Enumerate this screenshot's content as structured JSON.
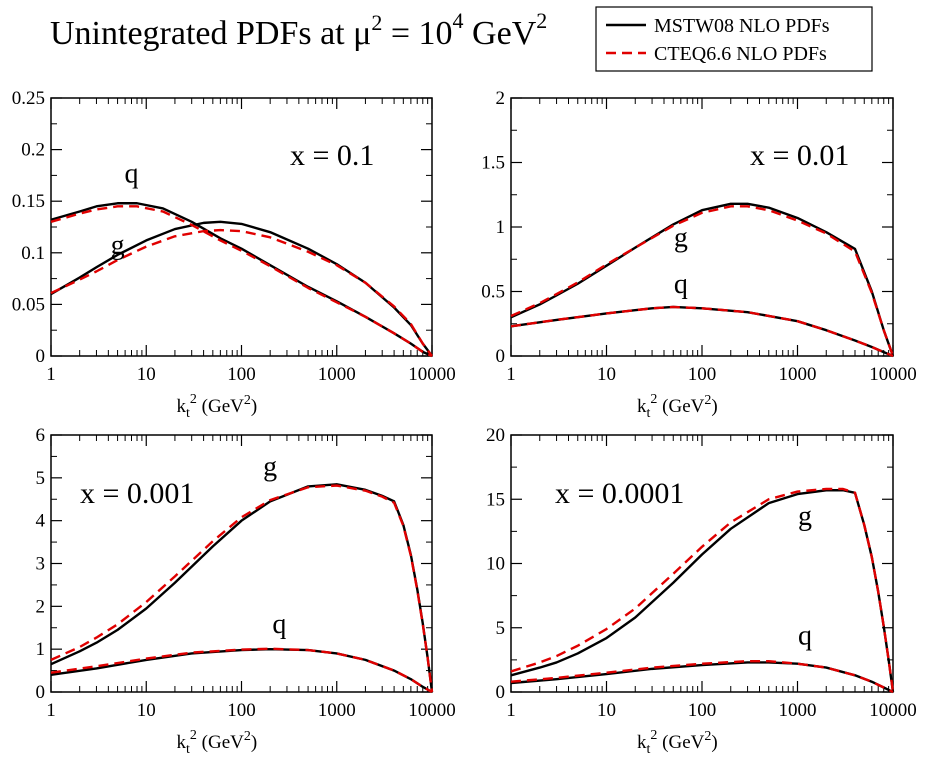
{
  "figure": {
    "title": "Unintegrated PDFs at μ² = 10⁴ GeV²",
    "title_parts": {
      "main": "Unintegrated PDFs at μ",
      "exp1": "2",
      "mid": " = 10",
      "exp2": "4",
      "unit": " GeV",
      "exp3": "2"
    },
    "legend": [
      {
        "label": "MSTW08 NLO PDFs",
        "color": "#000000",
        "dash": "solid"
      },
      {
        "label": "CTEQ6.6 NLO PDFs",
        "color": "#e00000",
        "dash": "dashed"
      }
    ],
    "colors": {
      "mstw": "#000000",
      "cteq": "#e00000"
    }
  },
  "chart_data": [
    {
      "type": "line",
      "title": "x = 0.1",
      "xscale": "log",
      "xlim": [
        1,
        10000
      ],
      "ylim": [
        0,
        0.25
      ],
      "xticks": [
        "1",
        "10",
        "100",
        "1000",
        "10000"
      ],
      "yticks": [
        "0",
        "0.05",
        "0.1",
        "0.15",
        "0.2",
        "0.25"
      ],
      "xlabel": "kt² (GeV²)",
      "curve_labels": [
        {
          "text": "q",
          "x": 7,
          "y": 0.168
        },
        {
          "text": "g",
          "x": 5,
          "y": 0.099
        }
      ],
      "series": [
        {
          "name": "MSTW08 NLO PDFs",
          "parton": "q",
          "x": [
            1,
            2,
            3,
            5,
            8,
            15,
            30,
            60,
            100,
            200,
            500,
            1000,
            2000,
            4000,
            6000,
            8000,
            10000
          ],
          "values": [
            0.132,
            0.14,
            0.145,
            0.148,
            0.148,
            0.143,
            0.13,
            0.114,
            0.104,
            0.088,
            0.067,
            0.053,
            0.038,
            0.022,
            0.012,
            0.004,
            0
          ]
        },
        {
          "name": "CTEQ6.6 NLO PDFs",
          "parton": "q",
          "x": [
            1,
            2,
            3,
            5,
            8,
            15,
            30,
            60,
            100,
            200,
            500,
            1000,
            2000,
            4000,
            6000,
            8000,
            10000
          ],
          "values": [
            0.13,
            0.138,
            0.142,
            0.145,
            0.145,
            0.14,
            0.127,
            0.112,
            0.102,
            0.087,
            0.066,
            0.052,
            0.038,
            0.022,
            0.012,
            0.004,
            0
          ]
        },
        {
          "name": "MSTW08 NLO PDFs",
          "parton": "g",
          "x": [
            1,
            2,
            3,
            5,
            10,
            20,
            40,
            60,
            100,
            200,
            500,
            1000,
            2000,
            4000,
            6000,
            8000,
            10000
          ],
          "values": [
            0.06,
            0.076,
            0.086,
            0.098,
            0.112,
            0.123,
            0.129,
            0.13,
            0.128,
            0.12,
            0.104,
            0.089,
            0.071,
            0.047,
            0.03,
            0.012,
            0
          ]
        },
        {
          "name": "CTEQ6.6 NLO PDFs",
          "parton": "g",
          "x": [
            1,
            2,
            3,
            5,
            10,
            20,
            40,
            60,
            100,
            200,
            500,
            1000,
            2000,
            4000,
            6000,
            8000,
            10000
          ],
          "values": [
            0.061,
            0.074,
            0.082,
            0.093,
            0.106,
            0.116,
            0.121,
            0.122,
            0.121,
            0.115,
            0.101,
            0.088,
            0.071,
            0.048,
            0.031,
            0.012,
            0
          ]
        }
      ]
    },
    {
      "type": "line",
      "title": "x = 0.01",
      "xscale": "log",
      "xlim": [
        1,
        10000
      ],
      "ylim": [
        0,
        2
      ],
      "xticks": [
        "1",
        "10",
        "100",
        "1000",
        "10000"
      ],
      "yticks": [
        "0",
        "0.5",
        "1",
        "1.5",
        "2"
      ],
      "xlabel": "kt² (GeV²)",
      "curve_labels": [
        {
          "text": "g",
          "x": 60,
          "y": 0.85
        },
        {
          "text": "q",
          "x": 60,
          "y": 0.49
        }
      ],
      "series": [
        {
          "name": "MSTW08 NLO PDFs",
          "parton": "g",
          "x": [
            1,
            2,
            3,
            5,
            10,
            20,
            50,
            100,
            200,
            300,
            500,
            1000,
            2000,
            4000,
            6000,
            8000,
            10000
          ],
          "values": [
            0.3,
            0.4,
            0.47,
            0.56,
            0.7,
            0.84,
            1.02,
            1.13,
            1.18,
            1.18,
            1.15,
            1.07,
            0.96,
            0.83,
            0.5,
            0.2,
            0
          ]
        },
        {
          "name": "CTEQ6.6 NLO PDFs",
          "parton": "g",
          "x": [
            1,
            2,
            3,
            5,
            10,
            20,
            50,
            100,
            200,
            300,
            500,
            1000,
            2000,
            4000,
            6000,
            8000,
            10000
          ],
          "values": [
            0.31,
            0.41,
            0.48,
            0.57,
            0.71,
            0.84,
            1.01,
            1.11,
            1.16,
            1.16,
            1.13,
            1.05,
            0.95,
            0.81,
            0.49,
            0.2,
            0
          ]
        },
        {
          "name": "MSTW08 NLO PDFs",
          "parton": "q",
          "x": [
            1,
            3,
            10,
            30,
            50,
            100,
            300,
            1000,
            2000,
            4000,
            6000,
            8000,
            10000
          ],
          "values": [
            0.23,
            0.28,
            0.33,
            0.37,
            0.38,
            0.37,
            0.34,
            0.27,
            0.2,
            0.12,
            0.07,
            0.03,
            0
          ]
        },
        {
          "name": "CTEQ6.6 NLO PDFs",
          "parton": "q",
          "x": [
            1,
            3,
            10,
            30,
            50,
            100,
            300,
            1000,
            2000,
            4000,
            6000,
            8000,
            10000
          ],
          "values": [
            0.23,
            0.28,
            0.33,
            0.37,
            0.38,
            0.37,
            0.34,
            0.27,
            0.2,
            0.12,
            0.07,
            0.03,
            0
          ]
        }
      ]
    },
    {
      "type": "line",
      "title": "x = 0.001",
      "xscale": "log",
      "xlim": [
        1,
        10000
      ],
      "ylim": [
        0,
        6
      ],
      "xticks": [
        "1",
        "10",
        "100",
        "1000",
        "10000"
      ],
      "yticks": [
        "0",
        "1",
        "2",
        "3",
        "4",
        "5",
        "6"
      ],
      "xlabel": "kt² (GeV²)",
      "curve_labels": [
        {
          "text": "g",
          "x": 200,
          "y": 5.05
        },
        {
          "text": "q",
          "x": 250,
          "y": 1.38
        }
      ],
      "series": [
        {
          "name": "MSTW08 NLO PDFs",
          "parton": "g",
          "x": [
            1,
            2,
            3,
            5,
            10,
            20,
            50,
            100,
            200,
            500,
            1000,
            2000,
            3000,
            4000,
            5000,
            6000,
            7000,
            8000,
            9000,
            10000
          ],
          "values": [
            0.65,
            0.95,
            1.15,
            1.45,
            1.95,
            2.55,
            3.4,
            4.0,
            4.45,
            4.8,
            4.85,
            4.72,
            4.58,
            4.45,
            3.9,
            3.2,
            2.4,
            1.6,
            0.8,
            0
          ]
        },
        {
          "name": "CTEQ6.6 NLO PDFs",
          "parton": "g",
          "x": [
            1,
            2,
            3,
            5,
            10,
            20,
            50,
            100,
            200,
            500,
            1000,
            2000,
            3000,
            4000,
            5000,
            6000,
            7000,
            8000,
            9000,
            10000
          ],
          "values": [
            0.75,
            1.05,
            1.27,
            1.58,
            2.1,
            2.7,
            3.52,
            4.08,
            4.48,
            4.78,
            4.82,
            4.7,
            4.56,
            4.42,
            3.88,
            3.18,
            2.38,
            1.58,
            0.8,
            0
          ]
        },
        {
          "name": "MSTW08 NLO PDFs",
          "parton": "q",
          "x": [
            1,
            3,
            10,
            30,
            100,
            200,
            500,
            1000,
            2000,
            4000,
            6000,
            8000,
            10000
          ],
          "values": [
            0.4,
            0.55,
            0.75,
            0.9,
            0.98,
            1.0,
            0.98,
            0.9,
            0.75,
            0.5,
            0.3,
            0.12,
            0
          ]
        },
        {
          "name": "CTEQ6.6 NLO PDFs",
          "parton": "q",
          "x": [
            1,
            3,
            10,
            30,
            100,
            200,
            500,
            1000,
            2000,
            4000,
            6000,
            8000,
            10000
          ],
          "values": [
            0.45,
            0.6,
            0.78,
            0.92,
            0.99,
            1.01,
            0.98,
            0.9,
            0.75,
            0.5,
            0.3,
            0.12,
            0
          ]
        }
      ]
    },
    {
      "type": "line",
      "title": "x = 0.0001",
      "xscale": "log",
      "xlim": [
        1,
        10000
      ],
      "ylim": [
        0,
        20
      ],
      "xticks": [
        "1",
        "10",
        "100",
        "1000",
        "10000"
      ],
      "yticks": [
        "0",
        "5",
        "10",
        "15",
        "20"
      ],
      "xlabel": "kt² (GeV²)",
      "curve_labels": [
        {
          "text": "g",
          "x": 1200,
          "y": 13.0
        },
        {
          "text": "q",
          "x": 1200,
          "y": 3.7
        }
      ],
      "series": [
        {
          "name": "MSTW08 NLO PDFs",
          "parton": "g",
          "x": [
            1,
            2,
            3,
            5,
            10,
            20,
            50,
            100,
            200,
            500,
            1000,
            2000,
            3000,
            4000,
            5000,
            6000,
            7000,
            8000,
            9000,
            10000
          ],
          "values": [
            1.3,
            1.9,
            2.3,
            3.0,
            4.2,
            5.8,
            8.5,
            10.7,
            12.7,
            14.7,
            15.4,
            15.7,
            15.7,
            15.5,
            13.0,
            10.5,
            7.8,
            5.1,
            2.5,
            0
          ]
        },
        {
          "name": "CTEQ6.6 NLO PDFs",
          "parton": "g",
          "x": [
            1,
            2,
            3,
            5,
            10,
            20,
            50,
            100,
            200,
            500,
            1000,
            2000,
            3000,
            4000,
            5000,
            6000,
            7000,
            8000,
            9000,
            10000
          ],
          "values": [
            1.6,
            2.3,
            2.8,
            3.6,
            4.9,
            6.5,
            9.2,
            11.3,
            13.2,
            15.0,
            15.6,
            15.8,
            15.8,
            15.5,
            13.0,
            10.5,
            7.8,
            5.1,
            2.5,
            0
          ]
        },
        {
          "name": "MSTW08 NLO PDFs",
          "parton": "q",
          "x": [
            1,
            3,
            10,
            30,
            100,
            300,
            500,
            1000,
            2000,
            4000,
            6000,
            8000,
            10000
          ],
          "values": [
            0.7,
            1.0,
            1.4,
            1.8,
            2.1,
            2.3,
            2.3,
            2.2,
            1.9,
            1.3,
            0.8,
            0.35,
            0
          ]
        },
        {
          "name": "CTEQ6.6 NLO PDFs",
          "parton": "q",
          "x": [
            1,
            3,
            10,
            30,
            100,
            300,
            500,
            1000,
            2000,
            4000,
            6000,
            8000,
            10000
          ],
          "values": [
            0.8,
            1.1,
            1.5,
            1.9,
            2.2,
            2.4,
            2.4,
            2.2,
            1.9,
            1.3,
            0.8,
            0.35,
            0
          ]
        }
      ]
    }
  ]
}
